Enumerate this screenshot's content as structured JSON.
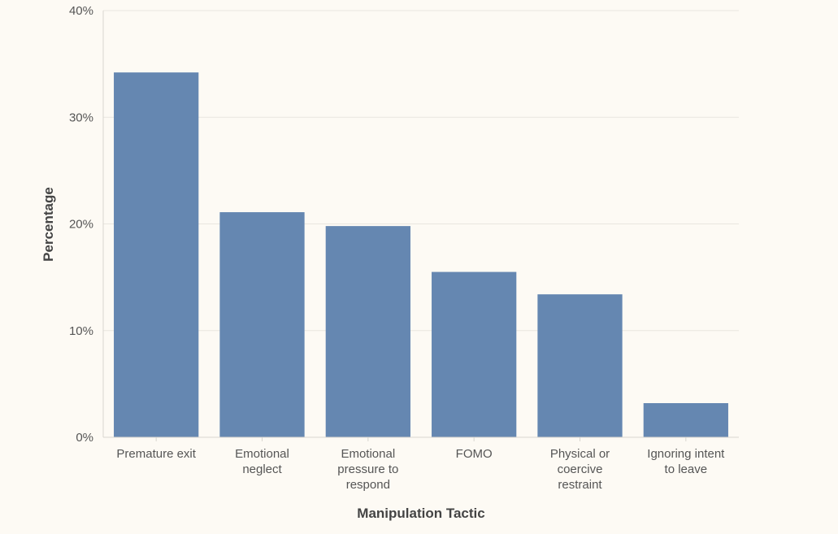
{
  "chart_data": {
    "type": "bar",
    "title": "",
    "xlabel": "Manipulation Tactic",
    "ylabel": "Percentage",
    "categories": [
      [
        "Premature exit"
      ],
      [
        "Emotional",
        "neglect"
      ],
      [
        "Emotional",
        "pressure to",
        "respond"
      ],
      [
        "FOMO"
      ],
      [
        "Physical or",
        "coercive",
        "restraint"
      ],
      [
        "Ignoring intent",
        "to leave"
      ]
    ],
    "values": [
      34.2,
      21.1,
      19.8,
      15.5,
      13.4,
      3.2
    ],
    "ylim": [
      0,
      40
    ],
    "yticks": [
      0,
      10,
      20,
      30,
      40
    ],
    "ytick_labels": [
      "0%",
      "10%",
      "20%",
      "30%",
      "40%"
    ],
    "grid": true,
    "bar_color": "#6587b1"
  }
}
